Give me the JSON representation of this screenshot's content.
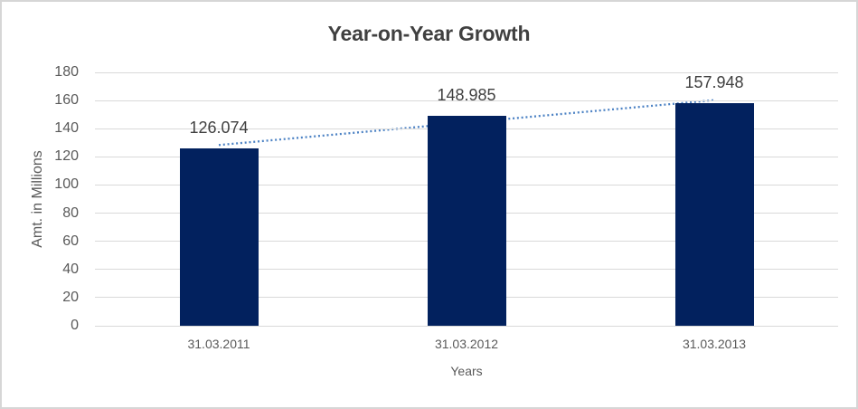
{
  "chart_data": {
    "type": "bar",
    "title": "Year-on-Year Growth",
    "xlabel": "Years",
    "ylabel": "Amt. in Millions",
    "categories": [
      "31.03.2011",
      "31.03.2012",
      "31.03.2013"
    ],
    "values": [
      126.074,
      148.985,
      157.948
    ],
    "data_labels": [
      "126.074",
      "148.985",
      "157.948"
    ],
    "ylim": [
      0,
      180
    ],
    "ytick_values": [
      0,
      20,
      40,
      60,
      80,
      100,
      120,
      140,
      160,
      180
    ],
    "ytick_labels": [
      "0",
      "20",
      "40",
      "60",
      "80",
      "100",
      "120",
      "140",
      "160",
      "180"
    ],
    "grid": true,
    "legend": "none",
    "trendline": {
      "kind": "linear",
      "style": "dotted"
    },
    "colors": {
      "bar": "#02215E",
      "trendline": "#4C82C4",
      "gridline": "#D9D9D9",
      "axis_text": "#595959",
      "title_text": "#404040",
      "label_text": "#404040",
      "border": "#D6D6D6"
    }
  }
}
